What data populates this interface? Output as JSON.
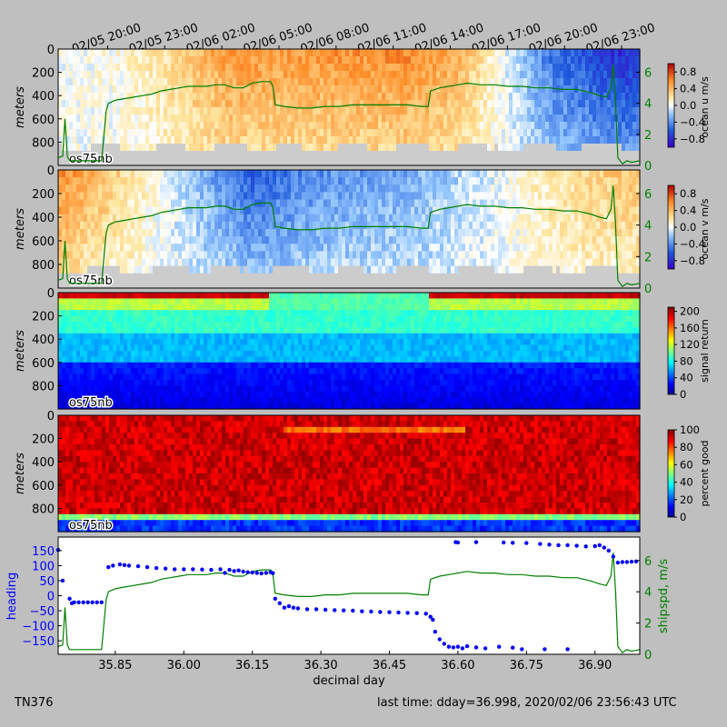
{
  "cruise_id": "TN376",
  "last_time": "last time: dday=36.998,  2020/02/06 23:56:43 UTC",
  "instrument_label": "os75nb",
  "top_time_axis": {
    "ticks": [
      "02/05 20:00",
      "02/05 23:00",
      "02/06 02:00",
      "02/06 05:00",
      "02/06 08:00",
      "02/06 11:00",
      "02/06 14:00",
      "02/06 17:00",
      "02/06 20:00",
      "02/06 23:00"
    ],
    "tick_dday": [
      35.8333,
      35.9583,
      36.0833,
      36.2083,
      36.3333,
      36.4583,
      36.5833,
      36.7083,
      36.8333,
      36.9583
    ]
  },
  "colors": {
    "background": "#bfbfbf",
    "speed_line": "#007f00",
    "heading_points": "#0000ff",
    "no_data": "#cccccc"
  },
  "chart_data": [
    {
      "type": "heatmap",
      "panel": "ocean_u",
      "ylabel": "meters",
      "ylim": [
        1000,
        0
      ],
      "yticks": [
        "0",
        "200",
        "400",
        "600",
        "800"
      ],
      "colorbar_label": "ocean u m/s",
      "colorbar_ticks": [
        "0.8",
        "0.4",
        "0.0",
        "−0.4",
        "−0.8"
      ],
      "color_range": [
        -1.0,
        1.0
      ],
      "colormap": "blue-white-red",
      "right_axis_ticks": [
        "6",
        "4",
        "2",
        "0"
      ],
      "right_axis_range": [
        0,
        7.5
      ],
      "right_axis_series": "shipspd",
      "approx_u_by_dday": [
        [
          35.73,
          0.0
        ],
        [
          35.85,
          0.05
        ],
        [
          35.95,
          0.2
        ],
        [
          36.1,
          0.55
        ],
        [
          36.3,
          0.55
        ],
        [
          36.5,
          0.6
        ],
        [
          36.6,
          0.45
        ],
        [
          36.7,
          0.0
        ],
        [
          36.8,
          -0.5
        ],
        [
          36.95,
          -0.8
        ]
      ]
    },
    {
      "type": "heatmap",
      "panel": "ocean_v",
      "ylabel": "meters",
      "ylim": [
        1000,
        0
      ],
      "yticks": [
        "0",
        "200",
        "400",
        "600",
        "800"
      ],
      "colorbar_label": "ocean v m/s",
      "colorbar_ticks": [
        "0.8",
        "0.4",
        "0.0",
        "−0.4",
        "−0.8"
      ],
      "color_range": [
        -1.0,
        1.0
      ],
      "colormap": "blue-white-red",
      "right_axis_ticks": [
        "6",
        "4",
        "2",
        "0"
      ],
      "right_axis_range": [
        0,
        7.5
      ],
      "right_axis_series": "shipspd",
      "approx_v_by_dday": [
        [
          35.73,
          0.6
        ],
        [
          35.85,
          0.3
        ],
        [
          35.95,
          0.0
        ],
        [
          36.05,
          -0.3
        ],
        [
          36.15,
          -0.6
        ],
        [
          36.3,
          -0.4
        ],
        [
          36.5,
          -0.3
        ],
        [
          36.65,
          -0.1
        ],
        [
          36.75,
          0.1
        ],
        [
          36.9,
          0.3
        ],
        [
          36.99,
          0.35
        ]
      ]
    },
    {
      "type": "heatmap",
      "panel": "signal_return",
      "ylabel": "meters",
      "ylim": [
        1000,
        0
      ],
      "yticks": [
        "0",
        "200",
        "400",
        "600",
        "800"
      ],
      "colorbar_label": "signal return",
      "colorbar_ticks": [
        "200",
        "160",
        "120",
        "80",
        "40",
        "0"
      ],
      "color_range": [
        0,
        210
      ],
      "colormap": "jet"
    },
    {
      "type": "heatmap",
      "panel": "percent_good",
      "ylabel": "meters",
      "ylim": [
        1000,
        0
      ],
      "yticks": [
        "0",
        "200",
        "400",
        "600",
        "800"
      ],
      "colorbar_label": "percent good",
      "colorbar_ticks": [
        "100",
        "80",
        "60",
        "40",
        "20",
        "0"
      ],
      "color_range": [
        0,
        100
      ],
      "colormap": "jet"
    },
    {
      "type": "scatter",
      "panel": "heading_shipspd",
      "xlabel": "decimal day",
      "xlim": [
        35.725,
        36.998
      ],
      "xticks": [
        "35.85",
        "36.00",
        "36.15",
        "36.30",
        "36.45",
        "36.60",
        "36.75",
        "36.90"
      ],
      "xtick_values": [
        35.85,
        36.0,
        36.15,
        36.3,
        36.45,
        36.6,
        36.75,
        36.9
      ],
      "ylabel": "heading",
      "ylim": [
        -195,
        195
      ],
      "yticks": [
        "150",
        "100",
        "50",
        "0",
        "−50",
        "−100",
        "−150"
      ],
      "ytick_values": [
        150,
        100,
        50,
        0,
        -50,
        -100,
        -150
      ],
      "right_ylabel": "shipspd, m/s",
      "right_ylim": [
        0,
        7.5
      ],
      "right_yticks": [
        "6",
        "4",
        "2",
        "0"
      ],
      "right_ytick_values": [
        6,
        4,
        2,
        0
      ],
      "heading": [
        [
          35.725,
          152
        ],
        [
          35.735,
          50
        ],
        [
          35.75,
          -10
        ],
        [
          35.755,
          -25
        ],
        [
          35.76,
          -22
        ],
        [
          35.77,
          -22
        ],
        [
          35.78,
          -22
        ],
        [
          35.79,
          -22
        ],
        [
          35.8,
          -22
        ],
        [
          35.81,
          -22
        ],
        [
          35.82,
          -22
        ],
        [
          35.835,
          95
        ],
        [
          35.845,
          100
        ],
        [
          35.86,
          104
        ],
        [
          35.87,
          102
        ],
        [
          35.88,
          100
        ],
        [
          35.9,
          98
        ],
        [
          35.92,
          95
        ],
        [
          35.94,
          92
        ],
        [
          35.96,
          90
        ],
        [
          35.98,
          88
        ],
        [
          36.0,
          88
        ],
        [
          36.02,
          88
        ],
        [
          36.04,
          87
        ],
        [
          36.06,
          86
        ],
        [
          36.08,
          88
        ],
        [
          36.09,
          76
        ],
        [
          36.1,
          86
        ],
        [
          36.11,
          82
        ],
        [
          36.12,
          84
        ],
        [
          36.13,
          80
        ],
        [
          36.14,
          78
        ],
        [
          36.15,
          77
        ],
        [
          36.16,
          76
        ],
        [
          36.17,
          74
        ],
        [
          36.18,
          76
        ],
        [
          36.19,
          78
        ],
        [
          36.195,
          75
        ],
        [
          36.2,
          -10
        ],
        [
          36.21,
          -25
        ],
        [
          36.22,
          -40
        ],
        [
          36.23,
          -35
        ],
        [
          36.24,
          -40
        ],
        [
          36.25,
          -42
        ],
        [
          36.27,
          -45
        ],
        [
          36.29,
          -45
        ],
        [
          36.31,
          -47
        ],
        [
          36.33,
          -48
        ],
        [
          36.35,
          -49
        ],
        [
          36.37,
          -50
        ],
        [
          36.39,
          -52
        ],
        [
          36.41,
          -53
        ],
        [
          36.43,
          -54
        ],
        [
          36.45,
          -55
        ],
        [
          36.47,
          -56
        ],
        [
          36.49,
          -57
        ],
        [
          36.51,
          -58
        ],
        [
          36.53,
          -60
        ],
        [
          36.54,
          -70
        ],
        [
          36.545,
          -80
        ],
        [
          36.55,
          -120
        ],
        [
          36.56,
          -145
        ],
        [
          36.57,
          -160
        ],
        [
          36.58,
          -170
        ],
        [
          36.59,
          -172
        ],
        [
          36.6,
          -170
        ],
        [
          36.61,
          -175
        ],
        [
          36.62,
          -168
        ],
        [
          36.64,
          -172
        ],
        [
          36.66,
          -175
        ],
        [
          36.69,
          -170
        ],
        [
          36.72,
          -173
        ],
        [
          36.74,
          -178
        ],
        [
          36.79,
          -178
        ],
        [
          36.84,
          -178
        ],
        [
          36.595,
          178
        ],
        [
          36.6,
          177
        ],
        [
          36.64,
          178
        ],
        [
          36.7,
          177
        ],
        [
          36.72,
          176
        ],
        [
          36.75,
          175
        ],
        [
          36.78,
          172
        ],
        [
          36.8,
          170
        ],
        [
          36.82,
          168
        ],
        [
          36.84,
          168
        ],
        [
          36.86,
          166
        ],
        [
          36.88,
          164
        ],
        [
          36.9,
          165
        ],
        [
          36.91,
          168
        ],
        [
          36.92,
          160
        ],
        [
          36.93,
          150
        ],
        [
          36.94,
          130
        ],
        [
          36.95,
          110
        ],
        [
          36.96,
          112
        ],
        [
          36.97,
          112
        ],
        [
          36.98,
          113
        ],
        [
          36.99,
          114
        ]
      ],
      "shipspd": [
        [
          35.725,
          0.5
        ],
        [
          35.735,
          0.6
        ],
        [
          35.74,
          3.0
        ],
        [
          35.745,
          0.6
        ],
        [
          35.75,
          0.3
        ],
        [
          35.78,
          0.3
        ],
        [
          35.82,
          0.3
        ],
        [
          35.83,
          3.5
        ],
        [
          35.835,
          4.0
        ],
        [
          35.85,
          4.2
        ],
        [
          35.87,
          4.3
        ],
        [
          35.89,
          4.4
        ],
        [
          35.91,
          4.5
        ],
        [
          35.93,
          4.6
        ],
        [
          35.95,
          4.8
        ],
        [
          35.97,
          4.9
        ],
        [
          35.99,
          5.0
        ],
        [
          36.01,
          5.1
        ],
        [
          36.03,
          5.1
        ],
        [
          36.05,
          5.1
        ],
        [
          36.07,
          5.2
        ],
        [
          36.09,
          5.2
        ],
        [
          36.11,
          5.0
        ],
        [
          36.13,
          5.0
        ],
        [
          36.15,
          5.3
        ],
        [
          36.17,
          5.4
        ],
        [
          36.19,
          5.4
        ],
        [
          36.195,
          5.1
        ],
        [
          36.2,
          3.9
        ],
        [
          36.22,
          3.8
        ],
        [
          36.25,
          3.7
        ],
        [
          36.28,
          3.7
        ],
        [
          36.31,
          3.8
        ],
        [
          36.34,
          3.8
        ],
        [
          36.37,
          3.9
        ],
        [
          36.4,
          3.9
        ],
        [
          36.43,
          3.9
        ],
        [
          36.46,
          3.9
        ],
        [
          36.49,
          3.9
        ],
        [
          36.52,
          3.8
        ],
        [
          36.535,
          3.8
        ],
        [
          36.54,
          4.8
        ],
        [
          36.56,
          5.0
        ],
        [
          36.58,
          5.1
        ],
        [
          36.6,
          5.2
        ],
        [
          36.62,
          5.3
        ],
        [
          36.65,
          5.2
        ],
        [
          36.68,
          5.2
        ],
        [
          36.71,
          5.1
        ],
        [
          36.74,
          5.1
        ],
        [
          36.77,
          5.0
        ],
        [
          36.8,
          5.0
        ],
        [
          36.83,
          4.9
        ],
        [
          36.86,
          4.9
        ],
        [
          36.89,
          4.7
        ],
        [
          36.91,
          4.5
        ],
        [
          36.925,
          4.4
        ],
        [
          36.935,
          5.0
        ],
        [
          36.94,
          6.5
        ],
        [
          36.945,
          4.0
        ],
        [
          36.95,
          0.5
        ],
        [
          36.96,
          0.1
        ],
        [
          36.97,
          0.3
        ],
        [
          36.98,
          0.2
        ],
        [
          36.998,
          0.3
        ]
      ]
    }
  ]
}
